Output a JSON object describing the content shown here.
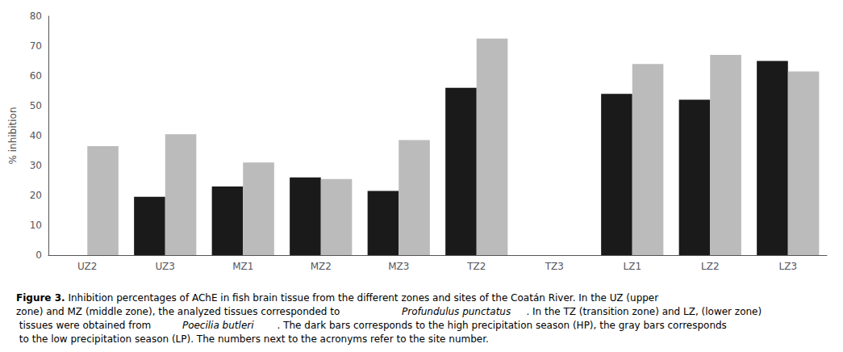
{
  "chart_data": {
    "type": "bar",
    "categories": [
      "UZ2",
      "UZ3",
      "MZ1",
      "MZ2",
      "MZ3",
      "TZ2",
      "TZ3",
      "LZ1",
      "LZ2",
      "LZ3"
    ],
    "series": [
      {
        "color": "#1a1a1a",
        "values": [
          null,
          19.5,
          23.0,
          26.0,
          21.5,
          56.0,
          null,
          54.0,
          52.0,
          65.0
        ]
      },
      {
        "color": "#bbbbbb",
        "values": [
          36.5,
          40.5,
          31.0,
          25.5,
          38.5,
          72.5,
          null,
          64.0,
          67.0,
          61.5
        ]
      }
    ],
    "ylabel": "% inhibition",
    "ylim": [
      0,
      80
    ],
    "yticks": [
      0,
      10,
      20,
      30,
      40,
      50,
      60,
      70,
      80
    ],
    "grid": false,
    "caption": [
      {
        "style": "bold",
        "text": "Figure 3."
      },
      {
        "style": "normal",
        "text": " Inhibition percentages of AChE in fish brain tissue from the different zones and sites of the Coatán River. In the UZ (upper zone) and MZ (middle zone), the analyzed tissues corresponded to "
      },
      {
        "style": "italic",
        "text": "Profundulus punctatus"
      },
      {
        "style": "normal",
        "text": ". In the TZ (transition zone) and LZ, (lower zone) tissues were obtained from "
      },
      {
        "style": "italic",
        "text": "Poecilia butleri"
      },
      {
        "style": "normal",
        "text": ". The dark bars corresponds to the high precipitation season (HP), the gray bars corresponds to the low precipitation season (LP). The numbers next to the acronyms refer to the site number."
      }
    ]
  }
}
